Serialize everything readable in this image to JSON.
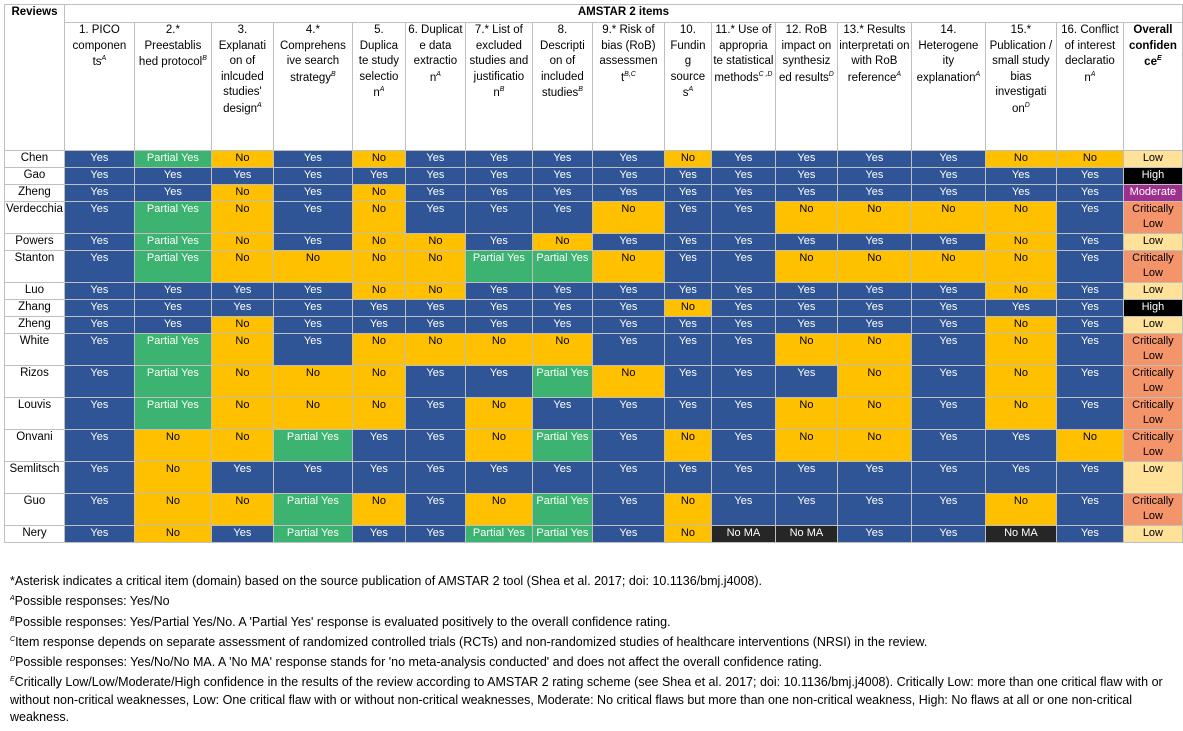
{
  "header": {
    "title": "AMSTAR 2 items",
    "reviews_label": "Reviews",
    "items": [
      {
        "text": "1. PICO componen ts",
        "sup": "A"
      },
      {
        "text": "2.* Preestablis hed protocol",
        "sup": "B"
      },
      {
        "text": "3. Explanati on of inlcuded studies' design",
        "sup": "A"
      },
      {
        "text": "4.* Comprehens ive search strategy",
        "sup": "B"
      },
      {
        "text": "5. Duplica te study selectio n",
        "sup": "A"
      },
      {
        "text": "6. Duplicat e data extractio n",
        "sup": "A"
      },
      {
        "text": "7.* List of excluded studies and justificatio n",
        "sup": "B"
      },
      {
        "text": "8. Descripti on of included studies",
        "sup": "B"
      },
      {
        "text": "9.* Risk of bias (RoB) assessmen t",
        "sup": "B,C"
      },
      {
        "text": "10. Fundin g source s",
        "sup": "A"
      },
      {
        "text": "11.* Use of appropria te statistical methods",
        "sup": "C ,D"
      },
      {
        "text": "12. RoB impact on synthesiz ed results",
        "sup": "D"
      },
      {
        "text": "13.* Results interpretati on with RoB reference",
        "sup": "A"
      },
      {
        "text": "14. Heterogene ity explanation",
        "sup": "A"
      },
      {
        "text": "15.* Publication / small study bias investigati on",
        "sup": "D"
      },
      {
        "text": "16. Conflict of interest declaratio n",
        "sup": "A"
      }
    ],
    "overall": {
      "text": "Overall confiden ce",
      "sup": "E"
    }
  },
  "rows": [
    {
      "review": "Chen",
      "cells": [
        "Yes",
        "Partial Yes",
        "No",
        "Yes",
        "No",
        "Yes",
        "Yes",
        "Yes",
        "Yes",
        "No",
        "Yes",
        "Yes",
        "Yes",
        "Yes",
        "No",
        "No"
      ],
      "overall": "Low"
    },
    {
      "review": "Gao",
      "cells": [
        "Yes",
        "Yes",
        "Yes",
        "Yes",
        "Yes",
        "Yes",
        "Yes",
        "Yes",
        "Yes",
        "Yes",
        "Yes",
        "Yes",
        "Yes",
        "Yes",
        "Yes",
        "Yes"
      ],
      "overall": "High"
    },
    {
      "review": "Zheng",
      "cells": [
        "Yes",
        "Yes",
        "No",
        "Yes",
        "No",
        "Yes",
        "Yes",
        "Yes",
        "Yes",
        "Yes",
        "Yes",
        "Yes",
        "Yes",
        "Yes",
        "Yes",
        "Yes"
      ],
      "overall": "Moderate"
    },
    {
      "review": "Verdecchia",
      "cells": [
        "Yes",
        "Partial Yes",
        "No",
        "Yes",
        "No",
        "Yes",
        "Yes",
        "Yes",
        "No",
        "Yes",
        "Yes",
        "No",
        "No",
        "No",
        "No",
        "Yes"
      ],
      "overall": "Critically Low"
    },
    {
      "review": "Powers",
      "cells": [
        "Yes",
        "Partial Yes",
        "No",
        "Yes",
        "No",
        "No",
        "Yes",
        "No",
        "Yes",
        "Yes",
        "Yes",
        "Yes",
        "Yes",
        "Yes",
        "No",
        "Yes"
      ],
      "overall": "Low"
    },
    {
      "review": "Stanton",
      "cells": [
        "Yes",
        "Partial Yes",
        "No",
        "No",
        "No",
        "No",
        "Partial Yes",
        "Partial Yes",
        "No",
        "Yes",
        "Yes",
        "No",
        "No",
        "No",
        "No",
        "Yes"
      ],
      "overall": "Critically Low"
    },
    {
      "review": "Luo",
      "cells": [
        "Yes",
        "Yes",
        "Yes",
        "Yes",
        "No",
        "No",
        "Yes",
        "Yes",
        "Yes",
        "Yes",
        "Yes",
        "Yes",
        "Yes",
        "Yes",
        "No",
        "Yes"
      ],
      "overall": "Low"
    },
    {
      "review": "Zhang",
      "cells": [
        "Yes",
        "Yes",
        "Yes",
        "Yes",
        "Yes",
        "Yes",
        "Yes",
        "Yes",
        "Yes",
        "No",
        "Yes",
        "Yes",
        "Yes",
        "Yes",
        "Yes",
        "Yes"
      ],
      "overall": "High"
    },
    {
      "review": "Zheng",
      "cells": [
        "Yes",
        "Yes",
        "No",
        "Yes",
        "Yes",
        "Yes",
        "Yes",
        "Yes",
        "Yes",
        "Yes",
        "Yes",
        "Yes",
        "Yes",
        "Yes",
        "No",
        "Yes"
      ],
      "overall": "Low"
    },
    {
      "review": "White",
      "cells": [
        "Yes",
        "Partial Yes",
        "No",
        "Yes",
        "No",
        "No",
        "No",
        "No",
        "Yes",
        "Yes",
        "Yes",
        "No",
        "No",
        "Yes",
        "No",
        "Yes"
      ],
      "overall": "Critically Low"
    },
    {
      "review": "Rizos",
      "cells": [
        "Yes",
        "Partial Yes",
        "No",
        "No",
        "No",
        "Yes",
        "Yes",
        "Partial Yes",
        "No",
        "Yes",
        "Yes",
        "Yes",
        "No",
        "Yes",
        "No",
        "Yes"
      ],
      "overall": "Critically Low"
    },
    {
      "review": "Louvis",
      "cells": [
        "Yes",
        "Partial Yes",
        "No",
        "No",
        "No",
        "Yes",
        "No",
        "Yes",
        "Yes",
        "Yes",
        "Yes",
        "No",
        "No",
        "Yes",
        "No",
        "Yes"
      ],
      "overall": "Critically Low"
    },
    {
      "review": "Onvani",
      "cells": [
        "Yes",
        "No",
        "No",
        "Partial Yes",
        "Yes",
        "Yes",
        "No",
        "Partial Yes",
        "Yes",
        "No",
        "Yes",
        "No",
        "No",
        "Yes",
        "Yes",
        "No"
      ],
      "overall": "Critically Low"
    },
    {
      "review": "Semlitsch",
      "cells": [
        "Yes",
        "No",
        "Yes",
        "Yes",
        "Yes",
        "Yes",
        "Yes",
        "Yes",
        "Yes",
        "Yes",
        "Yes",
        "Yes",
        "Yes",
        "Yes",
        "Yes",
        "Yes"
      ],
      "overall": "Low"
    },
    {
      "review": "Guo",
      "cells": [
        "Yes",
        "No",
        "No",
        "Partial Yes",
        "No",
        "Yes",
        "No",
        "Partial Yes",
        "Yes",
        "No",
        "Yes",
        "Yes",
        "Yes",
        "Yes",
        "No",
        "Yes"
      ],
      "overall": "Critically Low"
    },
    {
      "review": "Nery",
      "cells": [
        "Yes",
        "No",
        "Yes",
        "Partial Yes",
        "Yes",
        "Yes",
        "Partial Yes",
        "Partial Yes",
        "Yes",
        "No",
        "No MA",
        "No MA",
        "Yes",
        "Yes",
        "No MA",
        "Yes"
      ],
      "overall": "Low"
    }
  ],
  "footnotes": [
    {
      "sup": "",
      "text": "*Asterisk indicates a critical item (domain) based on the source publication of AMSTAR 2 tool (Shea et al. 2017; doi: 10.1136/bmj.j4008)."
    },
    {
      "sup": "A",
      "text": "Possible responses: Yes/No"
    },
    {
      "sup": "B",
      "text": "Possible responses: Yes/Partial Yes/No. A 'Partial Yes' response is evaluated positively to the overall confidence rating."
    },
    {
      "sup": "C",
      "text": "Item response depends on separate assessment of randomized controlled trials (RCTs) and non-randomized studies of healthcare interventions (NRSI) in the review."
    },
    {
      "sup": "D",
      "text": "Possible responses: Yes/No/No MA. A 'No MA' response stands for 'no meta-analysis conducted' and does not affect the overall confidence rating."
    },
    {
      "sup": "E",
      "text": "Critically Low/Low/Moderate/High confidence in the results of the review according to AMSTAR 2 rating scheme (see Shea et al. 2017; doi: 10.1136/bmj.j4008). Critically Low: more than one critical flaw with or without non-critical weaknesses, Low: One critical flaw with or without non-critical weaknesses, Moderate: No critical flaws but more than one non-critical weakness, High: No flaws at all or one non-critical weakness."
    }
  ],
  "colors": {
    "yes": "#2f5597",
    "no": "#ffc000",
    "partial_yes": "#3cb371",
    "no_ma": "#262626",
    "low": "#ffe29a",
    "high": "#000000",
    "moderate": "#9e2f8d",
    "critically_low": "#f4946b"
  }
}
